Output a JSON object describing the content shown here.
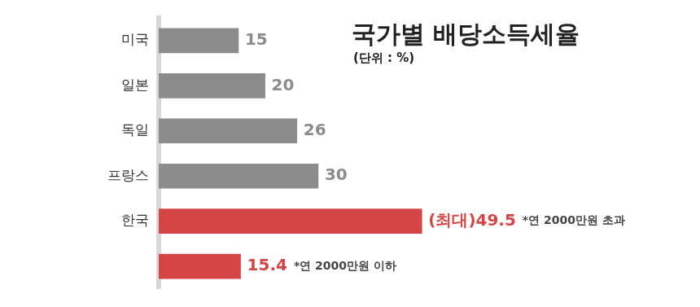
{
  "chart_data": {
    "type": "bar",
    "orientation": "horizontal",
    "title": "국가별 배당소득세율",
    "subtitle": "(단위 : %)",
    "categories": [
      "미국",
      "일본",
      "독일",
      "프랑스",
      "한국",
      null
    ],
    "values": [
      15,
      20,
      26,
      30,
      49.5,
      15.4
    ],
    "value_labels": [
      "15",
      "20",
      "26",
      "30",
      "(최대)49.5",
      "15.4"
    ],
    "colors": [
      "#8c8c8c",
      "#8c8c8c",
      "#8c8c8c",
      "#8c8c8c",
      "#d64545",
      "#d64545"
    ],
    "annotations": [
      {
        "index": 4,
        "text": "*연 2000만원 초과"
      },
      {
        "index": 5,
        "text": "*연 2000만원 이하"
      }
    ],
    "xlim": [
      0,
      100
    ],
    "xticks": [
      0,
      100
    ],
    "grid": false,
    "data_labels": true,
    "tick_labels": "y"
  }
}
